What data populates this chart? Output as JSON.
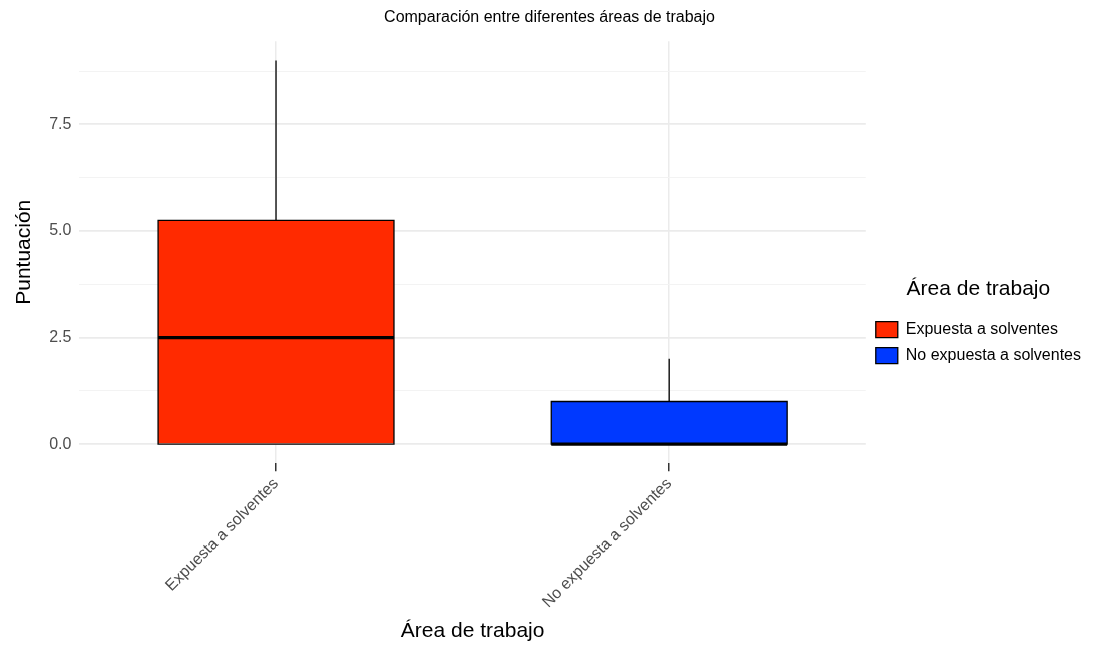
{
  "chart_data": {
    "type": "box",
    "title": "Comparación entre diferentes áreas de trabajo",
    "xlabel": "Área de trabajo",
    "ylabel": "Puntuación",
    "legend_title": "Área de trabajo",
    "legend": "right",
    "grid": true,
    "categories": [
      "Expuesta a solventes",
      "No expuesta a solventes"
    ],
    "series": [
      {
        "name": "Expuesta a solventes",
        "color": "#ff2a00",
        "boxes": [
          {
            "low": 0,
            "q1": 0,
            "median": 2.5,
            "q3": 5.25,
            "high": 9
          },
          null
        ]
      },
      {
        "name": "No expuesta a solventes",
        "color": "#0039ff",
        "boxes": [
          null,
          {
            "low": 0,
            "q1": 0,
            "median": 0,
            "q3": 1,
            "high": 2
          }
        ]
      }
    ],
    "ylim": [
      -0.45,
      9.45
    ],
    "yticks": [
      {
        "value": 0,
        "label": "0.0"
      },
      {
        "value": 1.25,
        "label": null
      },
      {
        "value": 2.5,
        "label": "2.5"
      },
      {
        "value": 3.75,
        "label": null
      },
      {
        "value": 5,
        "label": "5.0"
      },
      {
        "value": 6.25,
        "label": null
      },
      {
        "value": 7.5,
        "label": "7.5"
      },
      {
        "value": 8.75,
        "label": null
      }
    ]
  }
}
